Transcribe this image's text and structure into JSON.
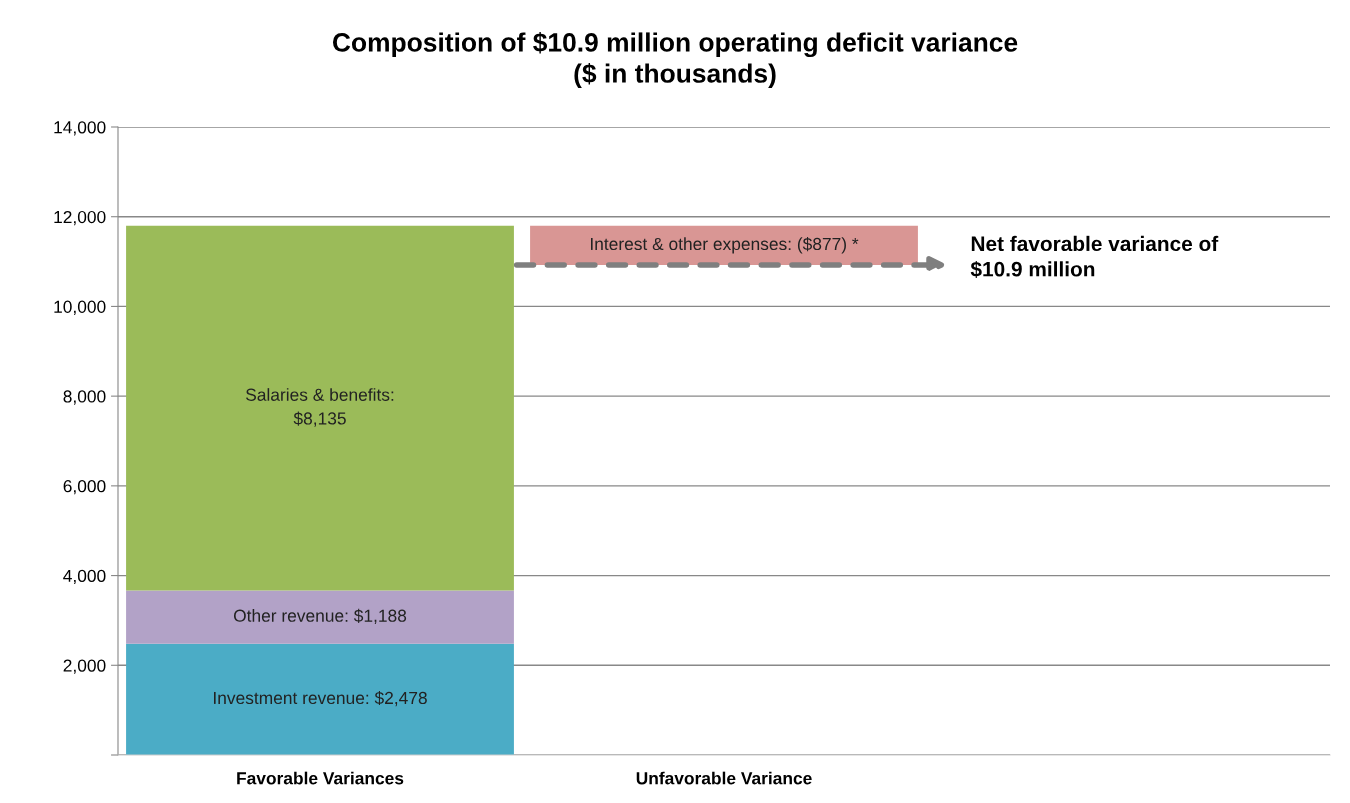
{
  "chart_data": {
    "type": "bar",
    "title": "Composition of $10.9 million operating deficit variance\n($ in thousands)",
    "categories": [
      "Favorable Variances",
      "Unfavorable Variance",
      null
    ],
    "stacked": true,
    "series": [
      {
        "color": "#4bacc6",
        "values": [
          2478,
          null,
          null
        ],
        "value_labels": [
          "Investment revenue: $2,478",
          null,
          null
        ]
      },
      {
        "color": "#b2a2c7",
        "values": [
          1188,
          null,
          null
        ],
        "value_labels": [
          "Other revenue: $1,188",
          null,
          null
        ]
      },
      {
        "color": "#9bbb59",
        "values": [
          8135,
          null,
          null
        ],
        "value_labels": [
          "Salaries & benefits:\n$8,135",
          null,
          null
        ]
      },
      {
        "color": "#d99694",
        "values": [
          null,
          877,
          null
        ],
        "base": [
          null,
          10924,
          null
        ],
        "value_labels": [
          null,
          "Interest & other expenses: ($877) *",
          null
        ]
      }
    ],
    "annotations": [
      "Net favorable variance of\n$10.9 million"
    ],
    "ylim": [
      0,
      14000
    ],
    "yticks": [
      {
        "value": 0,
        "label": null
      },
      {
        "value": 2000,
        "label": "2,000"
      },
      {
        "value": 4000,
        "label": "4,000"
      },
      {
        "value": 6000,
        "label": "6,000"
      },
      {
        "value": 8000,
        "label": "8,000"
      },
      {
        "value": 10000,
        "label": "10,000"
      },
      {
        "value": 12000,
        "label": "12,000"
      },
      {
        "value": 14000,
        "label": "14,000"
      }
    ],
    "grid": "y",
    "legend": false
  }
}
